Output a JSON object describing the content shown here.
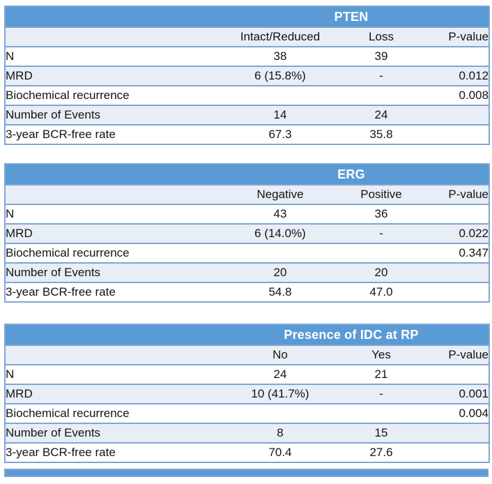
{
  "colors": {
    "header_blue": "#5B9BD5",
    "band_blue": "#E9EDF6",
    "border_blue": "#7EA6D4",
    "title_text": "#FFFFFF",
    "body_text": "#141414"
  },
  "tables": [
    {
      "title": "PTEN",
      "columns": [
        "Intact/Reduced",
        "Loss",
        "P-value"
      ],
      "rows": [
        {
          "label": "N",
          "values": [
            "38",
            "39",
            ""
          ]
        },
        {
          "label": "MRD",
          "values": [
            "6 (15.8%)",
            "-",
            "0.012"
          ]
        },
        {
          "label": "Biochemical recurrence",
          "values": [
            "",
            "",
            "0.008"
          ]
        },
        {
          "label": "Number of Events",
          "values": [
            "14",
            "24",
            ""
          ]
        },
        {
          "label": "3-year BCR-free rate",
          "values": [
            "67.3",
            "35.8",
            ""
          ]
        }
      ]
    },
    {
      "title": "ERG",
      "columns": [
        "Negative",
        "Positive",
        "P-value"
      ],
      "rows": [
        {
          "label": "N",
          "values": [
            "43",
            "36",
            ""
          ]
        },
        {
          "label": "MRD",
          "values": [
            "6 (14.0%)",
            "-",
            "0.022"
          ]
        },
        {
          "label": "Biochemical recurrence",
          "values": [
            "",
            "",
            "0.347"
          ]
        },
        {
          "label": "Number of Events",
          "values": [
            "20",
            "20",
            ""
          ]
        },
        {
          "label": "3-year BCR-free rate",
          "values": [
            "54.8",
            "47.0",
            ""
          ]
        }
      ]
    },
    {
      "title": "Presence of IDC at RP",
      "columns": [
        "No",
        "Yes",
        "P-value"
      ],
      "rows": [
        {
          "label": "N",
          "values": [
            "24",
            "21",
            ""
          ]
        },
        {
          "label": "MRD",
          "values": [
            "10 (41.7%)",
            "-",
            "0.001"
          ]
        },
        {
          "label": "Biochemical recurrence",
          "values": [
            "",
            "",
            "0.004"
          ]
        },
        {
          "label": "Number of Events",
          "values": [
            "8",
            "15",
            ""
          ]
        },
        {
          "label": "3-year BCR-free rate",
          "values": [
            "70.4",
            "27.6",
            ""
          ]
        }
      ]
    }
  ]
}
